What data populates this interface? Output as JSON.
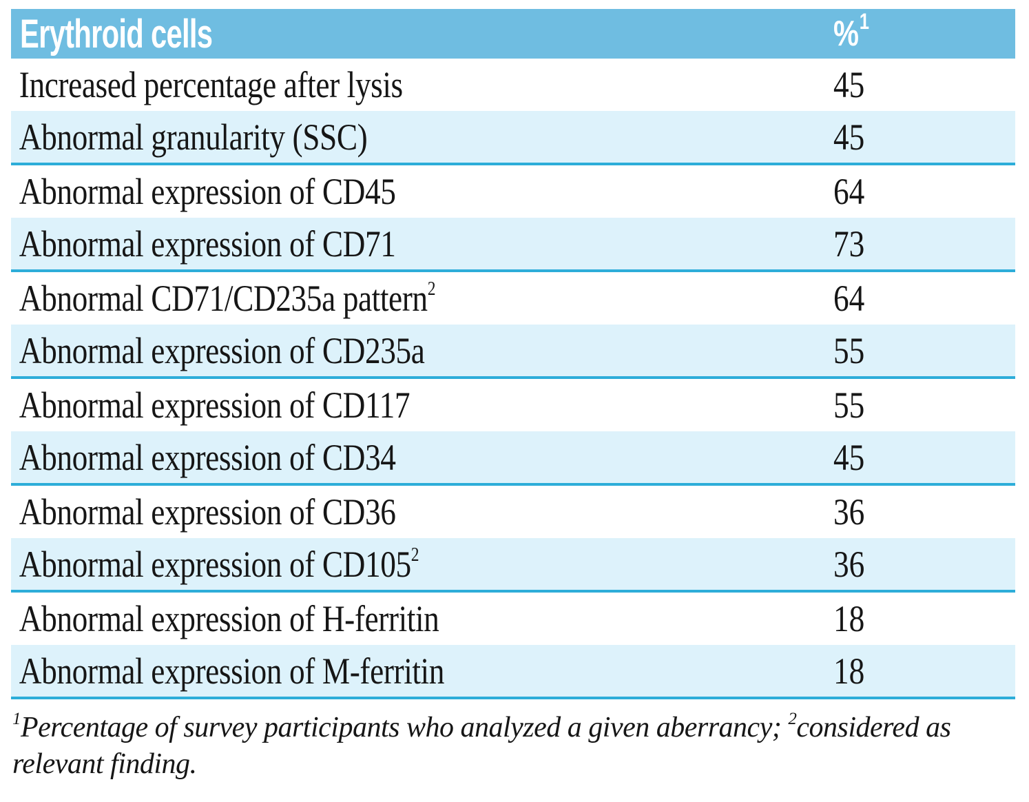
{
  "table": {
    "header": {
      "col1": "Erythroid cells",
      "col2": "%",
      "col2_sup": "1"
    },
    "rows": [
      {
        "label": "Increased percentage after lysis",
        "sup": "",
        "value": "45"
      },
      {
        "label": "Abnormal granularity (SSC)",
        "sup": "",
        "value": "45"
      },
      {
        "label": "Abnormal expression of CD45",
        "sup": "",
        "value": "64"
      },
      {
        "label": "Abnormal expression of CD71",
        "sup": "",
        "value": "73"
      },
      {
        "label": "Abnormal CD71/CD235a pattern",
        "sup": "2",
        "value": "64"
      },
      {
        "label": "Abnormal expression of CD235a",
        "sup": "",
        "value": "55"
      },
      {
        "label": "Abnormal expression of CD117",
        "sup": "",
        "value": "55"
      },
      {
        "label": "Abnormal expression of CD34",
        "sup": "",
        "value": "45"
      },
      {
        "label": "Abnormal expression of CD36",
        "sup": "",
        "value": "36"
      },
      {
        "label": "Abnormal expression of CD105",
        "sup": "2",
        "value": "36"
      },
      {
        "label": "Abnormal expression of H-ferritin",
        "sup": "",
        "value": "18"
      },
      {
        "label": "Abnormal expression of M-ferritin",
        "sup": "",
        "value": "18"
      }
    ]
  },
  "footnote": {
    "sup1": "1",
    "part1": "Percentage of survey participants who analyzed a given aberrancy; ",
    "sup2": "2",
    "part2": "considered as relevant finding."
  },
  "colors": {
    "header_bg": "#6fbde1",
    "header_text": "#ffffff",
    "row_alt_bg": "#ddf2fb",
    "row_separator": "#2dadd9",
    "body_text": "#161616"
  }
}
